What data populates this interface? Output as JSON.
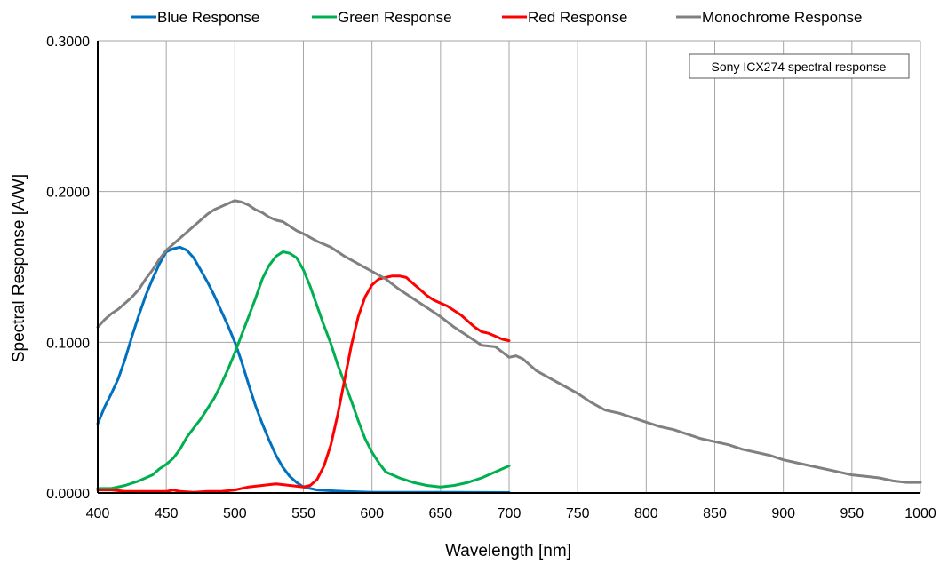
{
  "chart_data": {
    "type": "line",
    "title": "",
    "xlabel": "Wavelength [nm]",
    "ylabel": "Spectral Response [A/W]",
    "xlim": [
      400,
      1000
    ],
    "ylim": [
      0,
      0.3
    ],
    "xticks": [
      400,
      450,
      500,
      550,
      600,
      650,
      700,
      750,
      800,
      850,
      900,
      950,
      1000
    ],
    "xtick_labels": [
      "400",
      "450",
      "500",
      "550",
      "600",
      "650",
      "700",
      "750",
      "800",
      "850",
      "900",
      "950",
      "1000"
    ],
    "yticks": [
      0,
      0.1,
      0.2,
      0.3
    ],
    "ytick_labels": [
      "0.0000",
      "0.1000",
      "0.2000",
      "0.3000"
    ],
    "grid": true,
    "legend_position": "top",
    "annotation": "Sony ICX274 spectral response",
    "series": [
      {
        "name": "Blue Response",
        "color": "#0070c0",
        "points": [
          [
            400,
            0.046
          ],
          [
            405,
            0.057
          ],
          [
            410,
            0.066
          ],
          [
            415,
            0.076
          ],
          [
            420,
            0.089
          ],
          [
            425,
            0.104
          ],
          [
            430,
            0.118
          ],
          [
            435,
            0.131
          ],
          [
            440,
            0.142
          ],
          [
            445,
            0.152
          ],
          [
            450,
            0.16
          ],
          [
            455,
            0.162
          ],
          [
            460,
            0.163
          ],
          [
            465,
            0.161
          ],
          [
            470,
            0.156
          ],
          [
            475,
            0.148
          ],
          [
            480,
            0.14
          ],
          [
            485,
            0.131
          ],
          [
            490,
            0.121
          ],
          [
            495,
            0.111
          ],
          [
            500,
            0.1
          ],
          [
            505,
            0.087
          ],
          [
            510,
            0.072
          ],
          [
            515,
            0.058
          ],
          [
            520,
            0.046
          ],
          [
            525,
            0.035
          ],
          [
            530,
            0.025
          ],
          [
            535,
            0.017
          ],
          [
            540,
            0.011
          ],
          [
            545,
            0.007
          ],
          [
            550,
            0.004
          ],
          [
            560,
            0.002
          ],
          [
            580,
            0.001
          ],
          [
            600,
            0.0005
          ],
          [
            650,
            0.0005
          ],
          [
            700,
            0.0003
          ]
        ]
      },
      {
        "name": "Green Response",
        "color": "#00b050",
        "points": [
          [
            400,
            0.003
          ],
          [
            410,
            0.003
          ],
          [
            420,
            0.005
          ],
          [
            430,
            0.008
          ],
          [
            440,
            0.012
          ],
          [
            445,
            0.016
          ],
          [
            450,
            0.019
          ],
          [
            455,
            0.023
          ],
          [
            460,
            0.029
          ],
          [
            465,
            0.037
          ],
          [
            470,
            0.043
          ],
          [
            475,
            0.049
          ],
          [
            480,
            0.056
          ],
          [
            485,
            0.063
          ],
          [
            490,
            0.072
          ],
          [
            495,
            0.082
          ],
          [
            500,
            0.093
          ],
          [
            505,
            0.105
          ],
          [
            510,
            0.117
          ],
          [
            515,
            0.129
          ],
          [
            520,
            0.142
          ],
          [
            525,
            0.151
          ],
          [
            530,
            0.157
          ],
          [
            535,
            0.16
          ],
          [
            540,
            0.159
          ],
          [
            545,
            0.156
          ],
          [
            550,
            0.148
          ],
          [
            555,
            0.137
          ],
          [
            560,
            0.124
          ],
          [
            565,
            0.111
          ],
          [
            570,
            0.099
          ],
          [
            575,
            0.085
          ],
          [
            580,
            0.073
          ],
          [
            585,
            0.061
          ],
          [
            590,
            0.048
          ],
          [
            595,
            0.036
          ],
          [
            600,
            0.027
          ],
          [
            605,
            0.02
          ],
          [
            610,
            0.014
          ],
          [
            620,
            0.01
          ],
          [
            630,
            0.007
          ],
          [
            640,
            0.005
          ],
          [
            650,
            0.004
          ],
          [
            660,
            0.005
          ],
          [
            670,
            0.007
          ],
          [
            680,
            0.01
          ],
          [
            690,
            0.014
          ],
          [
            700,
            0.018
          ]
        ]
      },
      {
        "name": "Red Response",
        "color": "#ff0000",
        "points": [
          [
            400,
            0.002
          ],
          [
            410,
            0.002
          ],
          [
            420,
            0.001
          ],
          [
            430,
            0.001
          ],
          [
            440,
            0.001
          ],
          [
            450,
            0.001
          ],
          [
            455,
            0.002
          ],
          [
            460,
            0.001
          ],
          [
            470,
            0.0005
          ],
          [
            480,
            0.001
          ],
          [
            490,
            0.001
          ],
          [
            500,
            0.002
          ],
          [
            510,
            0.004
          ],
          [
            520,
            0.005
          ],
          [
            530,
            0.006
          ],
          [
            540,
            0.005
          ],
          [
            550,
            0.004
          ],
          [
            555,
            0.005
          ],
          [
            560,
            0.009
          ],
          [
            565,
            0.018
          ],
          [
            570,
            0.032
          ],
          [
            575,
            0.052
          ],
          [
            580,
            0.075
          ],
          [
            585,
            0.098
          ],
          [
            590,
            0.117
          ],
          [
            595,
            0.13
          ],
          [
            600,
            0.138
          ],
          [
            605,
            0.142
          ],
          [
            610,
            0.143
          ],
          [
            615,
            0.144
          ],
          [
            620,
            0.144
          ],
          [
            625,
            0.143
          ],
          [
            630,
            0.139
          ],
          [
            635,
            0.135
          ],
          [
            640,
            0.131
          ],
          [
            645,
            0.128
          ],
          [
            650,
            0.126
          ],
          [
            655,
            0.124
          ],
          [
            660,
            0.121
          ],
          [
            665,
            0.118
          ],
          [
            670,
            0.114
          ],
          [
            675,
            0.11
          ],
          [
            680,
            0.107
          ],
          [
            685,
            0.106
          ],
          [
            690,
            0.104
          ],
          [
            695,
            0.102
          ],
          [
            700,
            0.101
          ]
        ]
      },
      {
        "name": "Monochrome Response",
        "color": "#808080",
        "points": [
          [
            400,
            0.11
          ],
          [
            405,
            0.115
          ],
          [
            410,
            0.119
          ],
          [
            415,
            0.122
          ],
          [
            420,
            0.126
          ],
          [
            425,
            0.13
          ],
          [
            430,
            0.135
          ],
          [
            435,
            0.142
          ],
          [
            440,
            0.148
          ],
          [
            445,
            0.155
          ],
          [
            450,
            0.161
          ],
          [
            455,
            0.165
          ],
          [
            460,
            0.169
          ],
          [
            465,
            0.173
          ],
          [
            470,
            0.177
          ],
          [
            475,
            0.181
          ],
          [
            480,
            0.185
          ],
          [
            485,
            0.188
          ],
          [
            490,
            0.19
          ],
          [
            495,
            0.192
          ],
          [
            500,
            0.194
          ],
          [
            505,
            0.193
          ],
          [
            510,
            0.191
          ],
          [
            515,
            0.188
          ],
          [
            520,
            0.186
          ],
          [
            525,
            0.183
          ],
          [
            530,
            0.181
          ],
          [
            535,
            0.18
          ],
          [
            540,
            0.177
          ],
          [
            545,
            0.174
          ],
          [
            550,
            0.172
          ],
          [
            560,
            0.167
          ],
          [
            570,
            0.163
          ],
          [
            580,
            0.157
          ],
          [
            590,
            0.152
          ],
          [
            600,
            0.147
          ],
          [
            610,
            0.142
          ],
          [
            620,
            0.135
          ],
          [
            630,
            0.129
          ],
          [
            640,
            0.123
          ],
          [
            650,
            0.117
          ],
          [
            660,
            0.11
          ],
          [
            670,
            0.104
          ],
          [
            680,
            0.098
          ],
          [
            690,
            0.097
          ],
          [
            700,
            0.09
          ],
          [
            705,
            0.091
          ],
          [
            710,
            0.089
          ],
          [
            720,
            0.081
          ],
          [
            730,
            0.076
          ],
          [
            740,
            0.071
          ],
          [
            750,
            0.066
          ],
          [
            760,
            0.06
          ],
          [
            770,
            0.055
          ],
          [
            780,
            0.053
          ],
          [
            790,
            0.05
          ],
          [
            800,
            0.047
          ],
          [
            810,
            0.044
          ],
          [
            820,
            0.042
          ],
          [
            830,
            0.039
          ],
          [
            840,
            0.036
          ],
          [
            850,
            0.034
          ],
          [
            860,
            0.032
          ],
          [
            870,
            0.029
          ],
          [
            880,
            0.027
          ],
          [
            890,
            0.025
          ],
          [
            900,
            0.022
          ],
          [
            910,
            0.02
          ],
          [
            920,
            0.018
          ],
          [
            930,
            0.016
          ],
          [
            940,
            0.014
          ],
          [
            950,
            0.012
          ],
          [
            960,
            0.011
          ],
          [
            970,
            0.01
          ],
          [
            980,
            0.008
          ],
          [
            990,
            0.007
          ],
          [
            1000,
            0.007
          ]
        ]
      }
    ]
  }
}
